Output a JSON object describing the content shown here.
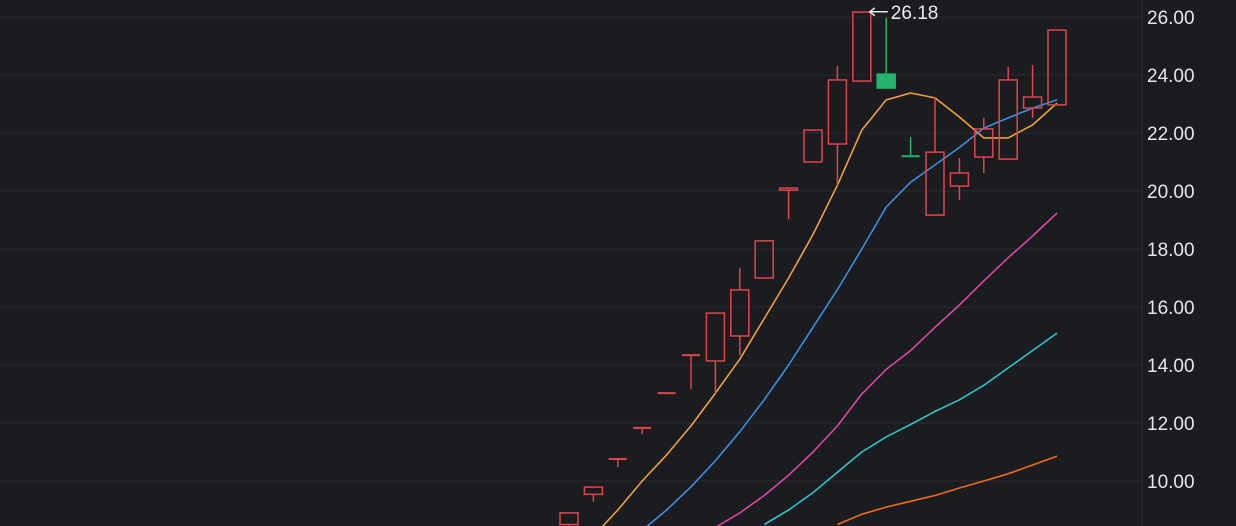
{
  "chart_data": {
    "type": "candlestick",
    "ylim": [
      8.45,
      26.6
    ],
    "y_ticks": [
      "10.00",
      "12.00",
      "14.00",
      "16.00",
      "18.00",
      "20.00",
      "22.00",
      "24.00",
      "26.00"
    ],
    "grid": true,
    "axis_position": "right",
    "colors": {
      "up": "#e0454a",
      "down": "#27b36b",
      "background": "#1b1c20",
      "grid": "#2a2b30"
    },
    "high_label": "26.18",
    "high_value": 26.18,
    "candles": [
      {
        "o": 8.5,
        "h": 8.9,
        "l": 8.3,
        "c": 8.9
      },
      {
        "o": 9.54,
        "h": 9.79,
        "l": 9.28,
        "c": 9.79
      },
      {
        "o": 10.72,
        "h": 10.76,
        "l": 10.48,
        "c": 10.76
      },
      {
        "o": 11.79,
        "h": 11.83,
        "l": 11.62,
        "c": 11.83
      },
      {
        "o": 13.03,
        "h": 13.03,
        "l": 13.03,
        "c": 13.03
      },
      {
        "o": 14.3,
        "h": 14.34,
        "l": 13.17,
        "c": 14.34
      },
      {
        "o": 14.14,
        "h": 15.79,
        "l": 13.03,
        "c": 15.79
      },
      {
        "o": 15.0,
        "h": 17.34,
        "l": 14.34,
        "c": 16.59
      },
      {
        "o": 17.0,
        "h": 18.28,
        "l": 17.0,
        "c": 18.28
      },
      {
        "o": 20.03,
        "h": 20.1,
        "l": 19.03,
        "c": 20.1
      },
      {
        "o": 21.0,
        "h": 22.1,
        "l": 21.0,
        "c": 22.1
      },
      {
        "o": 21.62,
        "h": 24.31,
        "l": 20.2,
        "c": 23.83
      },
      {
        "o": 23.79,
        "h": 26.18,
        "l": 23.79,
        "c": 26.17
      },
      {
        "o": 24.03,
        "h": 25.97,
        "l": 23.55,
        "c": 23.55
      },
      {
        "o": 21.2,
        "h": 21.86,
        "l": 21.17,
        "c": 21.17
      },
      {
        "o": 19.17,
        "h": 23.24,
        "l": 19.17,
        "c": 21.34
      },
      {
        "o": 20.17,
        "h": 21.14,
        "l": 19.69,
        "c": 20.62
      },
      {
        "o": 21.17,
        "h": 22.52,
        "l": 20.62,
        "c": 22.14
      },
      {
        "o": 21.1,
        "h": 24.28,
        "l": 21.1,
        "c": 23.83
      },
      {
        "o": 22.86,
        "h": 24.34,
        "l": 22.52,
        "c": 23.24
      },
      {
        "o": 22.97,
        "h": 25.55,
        "l": 22.97,
        "c": 25.55
      }
    ],
    "series": [
      {
        "color": "#f0a040",
        "values": [
          null,
          8.1,
          9.0,
          10.0,
          10.9,
          11.9,
          13.03,
          14.2,
          15.6,
          17.0,
          18.5,
          20.2,
          22.1,
          23.14,
          23.38,
          23.21,
          22.55,
          21.83,
          21.83,
          22.28,
          23.03
        ]
      },
      {
        "color": "#3d8fe0",
        "values": [
          null,
          null,
          7.7,
          8.3,
          9.0,
          9.8,
          10.7,
          11.7,
          12.8,
          14.0,
          15.3,
          16.6,
          18.0,
          19.45,
          20.3,
          20.9,
          21.5,
          22.17,
          22.52,
          22.86,
          23.14
        ]
      },
      {
        "color": "#d848a0",
        "values": [
          null,
          null,
          null,
          null,
          null,
          null,
          8.4,
          8.9,
          9.5,
          10.2,
          11.0,
          11.9,
          13.0,
          13.85,
          14.5,
          15.3,
          16.07,
          16.9,
          17.7,
          18.45,
          19.24
        ]
      },
      {
        "color": "#2ec4cc",
        "values": [
          null,
          null,
          null,
          null,
          null,
          null,
          null,
          null,
          8.5,
          9.0,
          9.6,
          10.3,
          11.0,
          11.52,
          11.95,
          12.4,
          12.8,
          13.3,
          13.9,
          14.5,
          15.1
        ]
      },
      {
        "color": "#f06a20",
        "values": [
          null,
          null,
          null,
          null,
          null,
          null,
          null,
          null,
          null,
          null,
          null,
          8.5,
          8.85,
          9.1,
          9.3,
          9.5,
          9.76,
          10.0,
          10.25,
          10.55,
          10.86
        ]
      }
    ]
  }
}
